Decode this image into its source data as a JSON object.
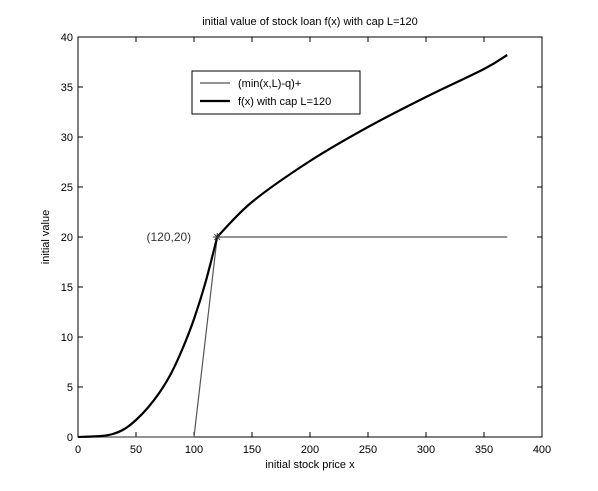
{
  "chart_data": {
    "type": "line",
    "title": "initial value of stock loan f(x) with cap L=120",
    "xlabel": "initial stock price x",
    "ylabel": "initial value",
    "xlim": [
      0,
      400
    ],
    "ylim": [
      0,
      40
    ],
    "xticks": [
      0,
      50,
      100,
      150,
      200,
      250,
      300,
      350,
      400
    ],
    "yticks": [
      0,
      5,
      10,
      15,
      20,
      25,
      30,
      35,
      40
    ],
    "xtick_labels": [
      "0",
      "50",
      "100",
      "150",
      "200",
      "250",
      "300",
      "350",
      "400"
    ],
    "ytick_labels": [
      "0",
      "5",
      "10",
      "15",
      "20",
      "25",
      "30",
      "35",
      "40"
    ],
    "grid": false,
    "legend_position": "upper-left inside",
    "series": [
      {
        "name": "(min(x,L)-q)+",
        "style": "thin",
        "color": "#555555",
        "x": [
          0,
          100,
          120,
          370
        ],
        "y": [
          0,
          0,
          20,
          20
        ]
      },
      {
        "name": "f(x) with cap L=120",
        "style": "thick",
        "color": "#000000",
        "x": [
          0,
          20,
          30,
          40,
          50,
          60,
          70,
          80,
          90,
          100,
          110,
          120,
          150,
          200,
          250,
          300,
          350,
          370
        ],
        "y": [
          0,
          0.1,
          0.3,
          0.8,
          1.7,
          2.9,
          4.4,
          6.3,
          8.8,
          11.8,
          15.5,
          20,
          23.5,
          27.6,
          31.0,
          34.0,
          36.8,
          38.2
        ]
      }
    ],
    "annotations": [
      {
        "text": "(120,20)",
        "x": 120,
        "y": 20,
        "marker": "*"
      }
    ]
  }
}
